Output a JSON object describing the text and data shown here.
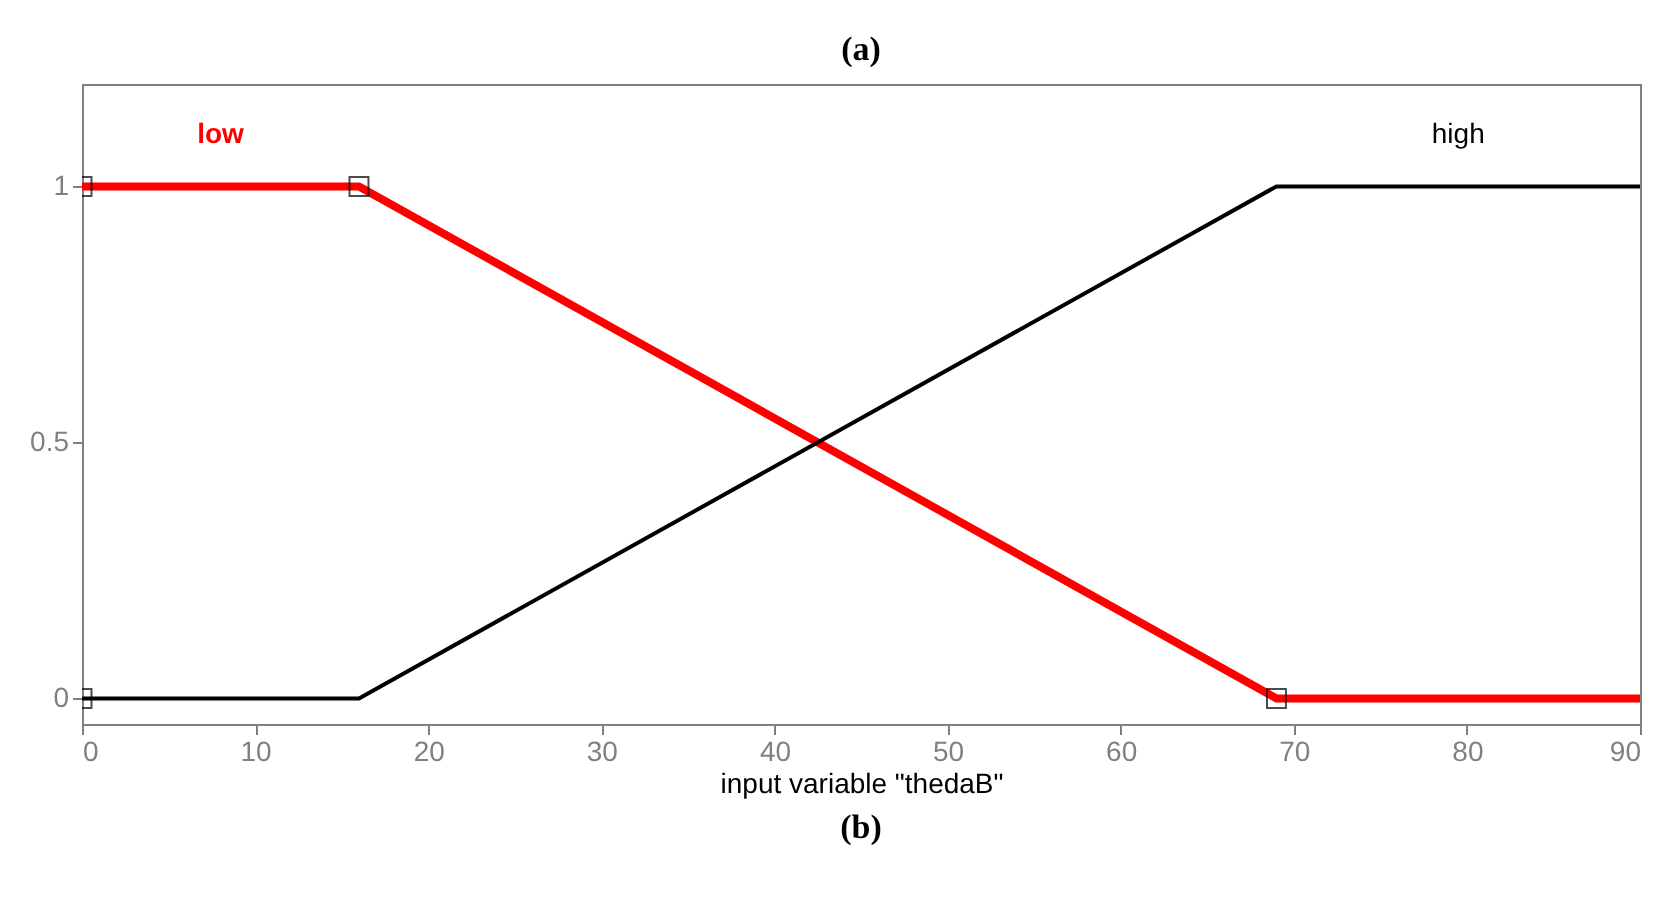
{
  "chart_data": {
    "type": "line",
    "xlabel": "input variable \"thedaB\"",
    "annotations": [
      "(a)",
      "(b)"
    ],
    "x": [
      0,
      16,
      69,
      90
    ],
    "series": [
      {
        "name": "low",
        "color": "#ff0000",
        "values": [
          1,
          1,
          0,
          0
        ]
      },
      {
        "name": "high",
        "color": "#000000",
        "values": [
          0,
          0,
          1,
          1
        ]
      },
      {
        "type": "scatter",
        "marker": "square",
        "color": "#000000",
        "x": [
          0,
          16,
          69,
          0
        ],
        "values": [
          1,
          1,
          0,
          0
        ]
      }
    ],
    "xlim": [
      0,
      90
    ],
    "xticks": [
      0,
      10,
      20,
      30,
      40,
      50,
      60,
      70,
      80,
      90
    ],
    "ylim": [
      -0.05,
      1.2
    ],
    "yticks": [
      0,
      0.5,
      1
    ],
    "grid": false,
    "marker": "none",
    "line_style": "solid"
  }
}
